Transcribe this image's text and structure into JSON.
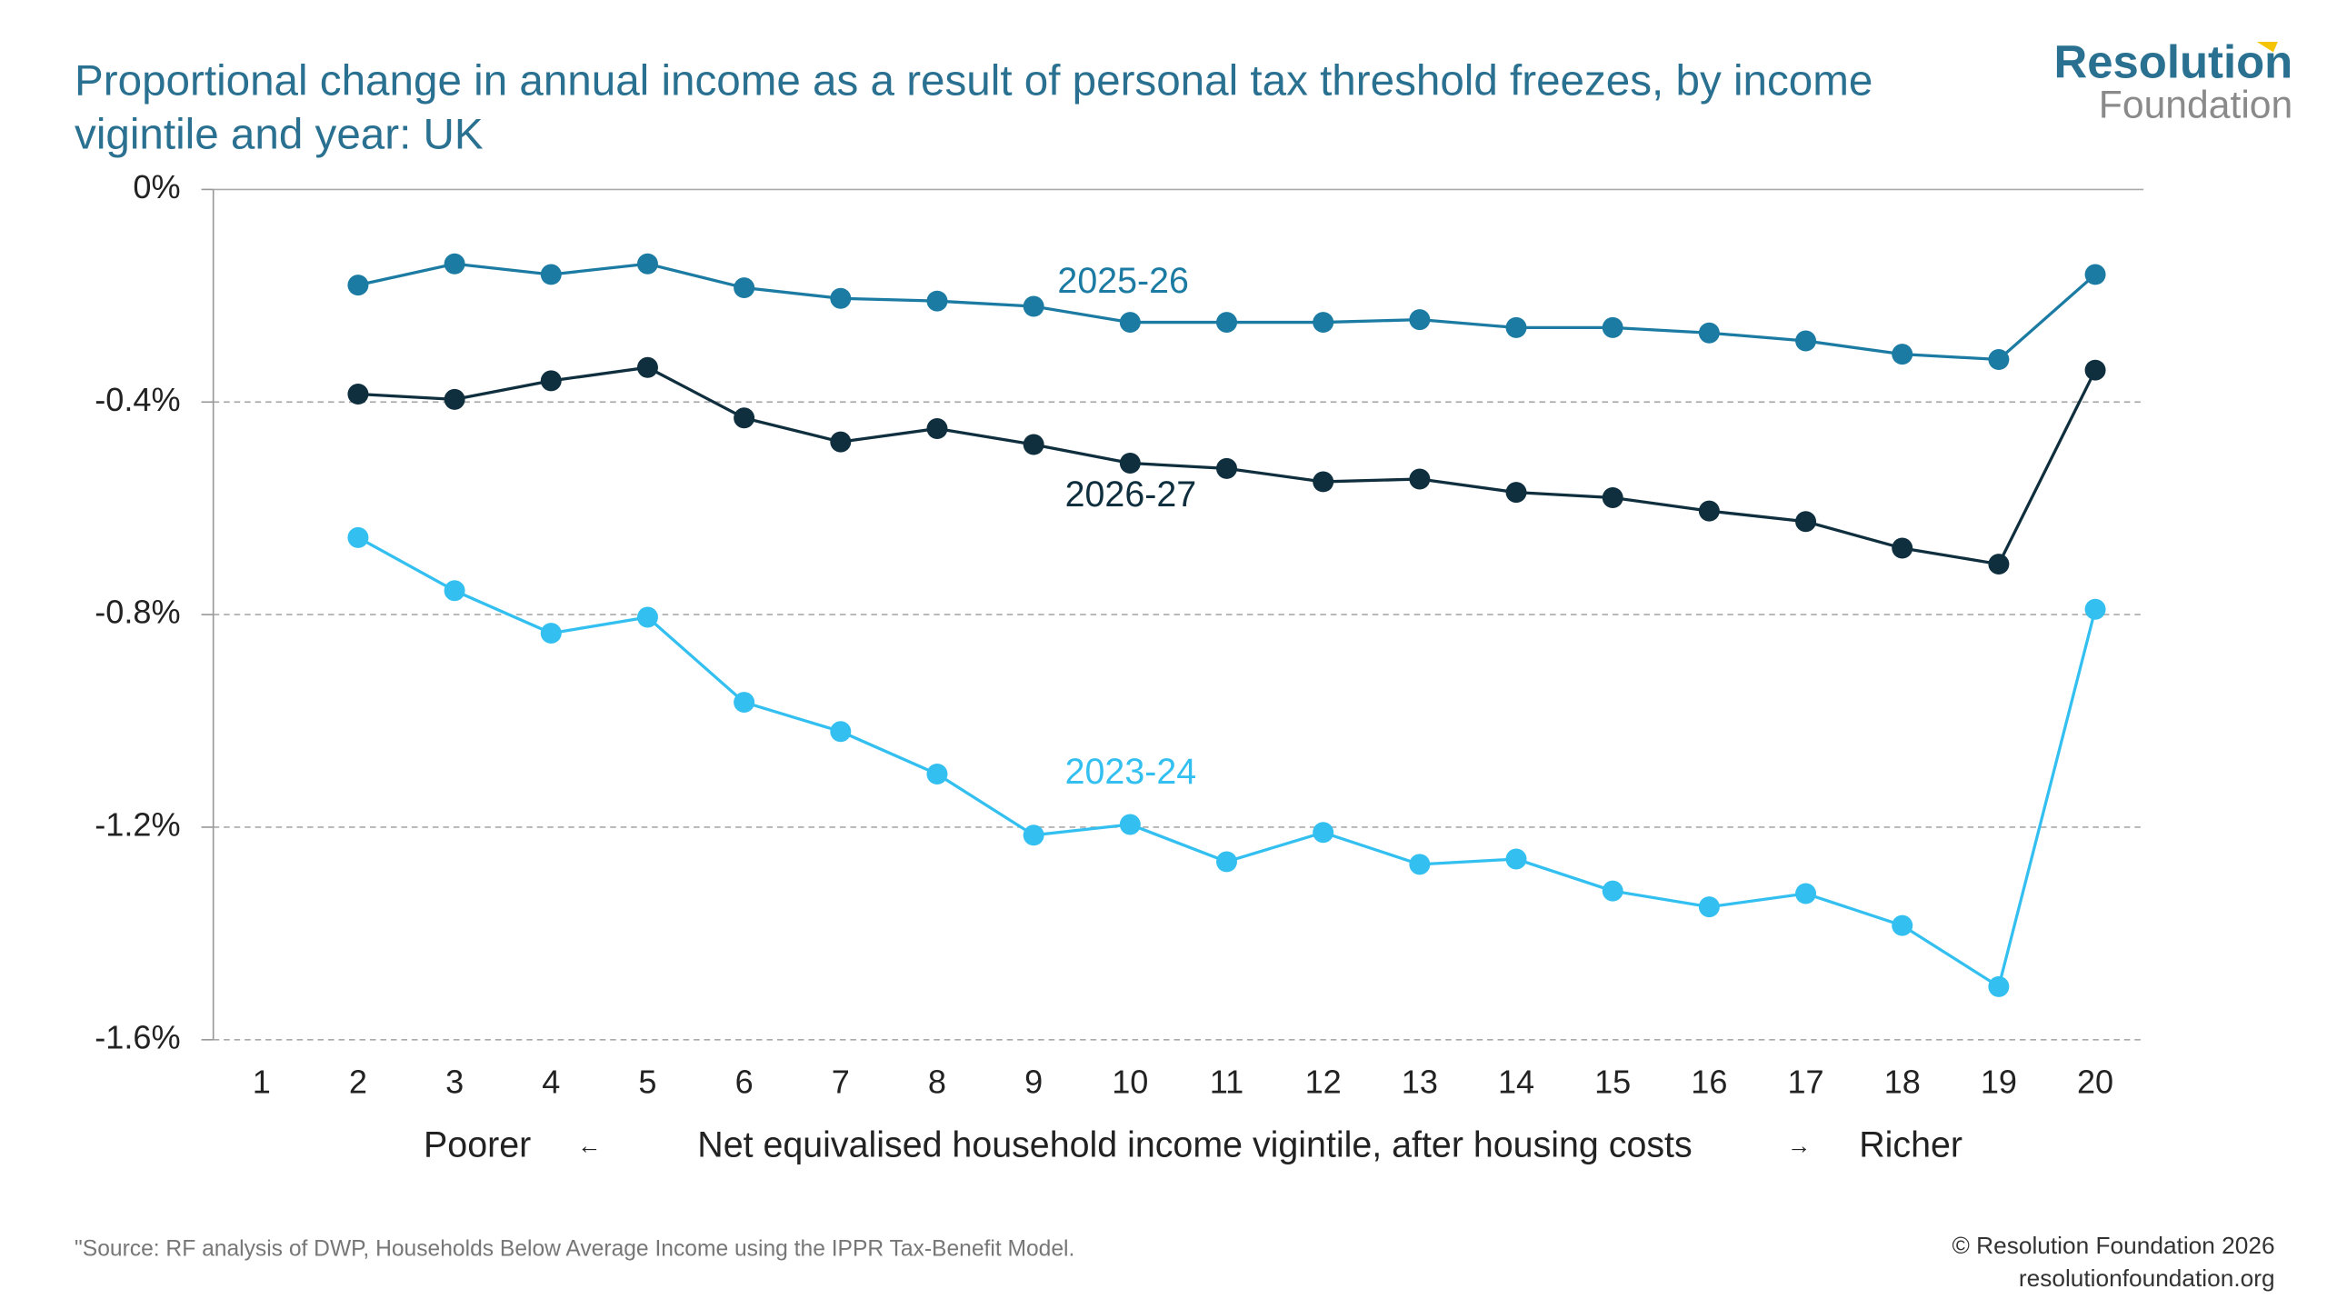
{
  "chart_data": {
    "type": "line",
    "title": "Proportional change in annual income as a result of personal tax threshold freezes, by income vigintile and year: UK",
    "x": [
      1,
      2,
      3,
      4,
      5,
      6,
      7,
      8,
      9,
      10,
      11,
      12,
      13,
      14,
      15,
      16,
      17,
      18,
      19,
      20
    ],
    "xlim": [
      0.5,
      20.5
    ],
    "xticks": [
      1,
      2,
      3,
      4,
      5,
      6,
      7,
      8,
      9,
      10,
      11,
      12,
      13,
      14,
      15,
      16,
      17,
      18,
      19,
      20
    ],
    "x_label_parts": [
      "Poorer",
      "←",
      "Net equivalised household income vigintile, after housing costs",
      "→",
      "Richer"
    ],
    "ylim": [
      -1.6,
      0
    ],
    "yticks": [
      {
        "value": 0,
        "label": "0%"
      },
      {
        "value": -0.4,
        "label": "-0.4%"
      },
      {
        "value": -0.8,
        "label": "-0.8%"
      },
      {
        "value": -1.2,
        "label": "-1.2%"
      },
      {
        "value": -1.6,
        "label": "-1.6%"
      }
    ],
    "grid": true,
    "series": [
      {
        "name": "2025-26",
        "color": "#1b7ba3",
        "values": [
          null,
          -0.18,
          -0.14,
          -0.16,
          -0.14,
          -0.185,
          -0.205,
          -0.21,
          -0.22,
          -0.25,
          -0.25,
          -0.25,
          -0.245,
          -0.26,
          -0.26,
          -0.27,
          -0.285,
          -0.31,
          -0.32,
          -0.16
        ]
      },
      {
        "name": "2026-27",
        "color": "#0f2f3e",
        "values": [
          null,
          -0.385,
          -0.395,
          -0.36,
          -0.335,
          -0.43,
          -0.475,
          -0.45,
          -0.48,
          -0.515,
          -0.525,
          -0.55,
          -0.545,
          -0.57,
          -0.58,
          -0.605,
          -0.625,
          -0.675,
          -0.705,
          -0.34
        ]
      },
      {
        "name": "2023-24",
        "color": "#33c0f0",
        "values": [
          null,
          -0.655,
          -0.755,
          -0.835,
          -0.805,
          -0.965,
          -1.02,
          -1.1,
          -1.215,
          -1.195,
          -1.265,
          -1.21,
          -1.27,
          -1.26,
          -1.32,
          -1.35,
          -1.325,
          -1.385,
          -1.5,
          -0.79
        ]
      }
    ],
    "source": "\"Source: RF analysis of DWP, Households Below Average Income using the IPPR Tax-Benefit Model.",
    "copyright": "© Resolution Foundation 2026",
    "website": "resolutionfoundation.org",
    "logo": [
      "Resolution",
      "Foundation"
    ]
  }
}
